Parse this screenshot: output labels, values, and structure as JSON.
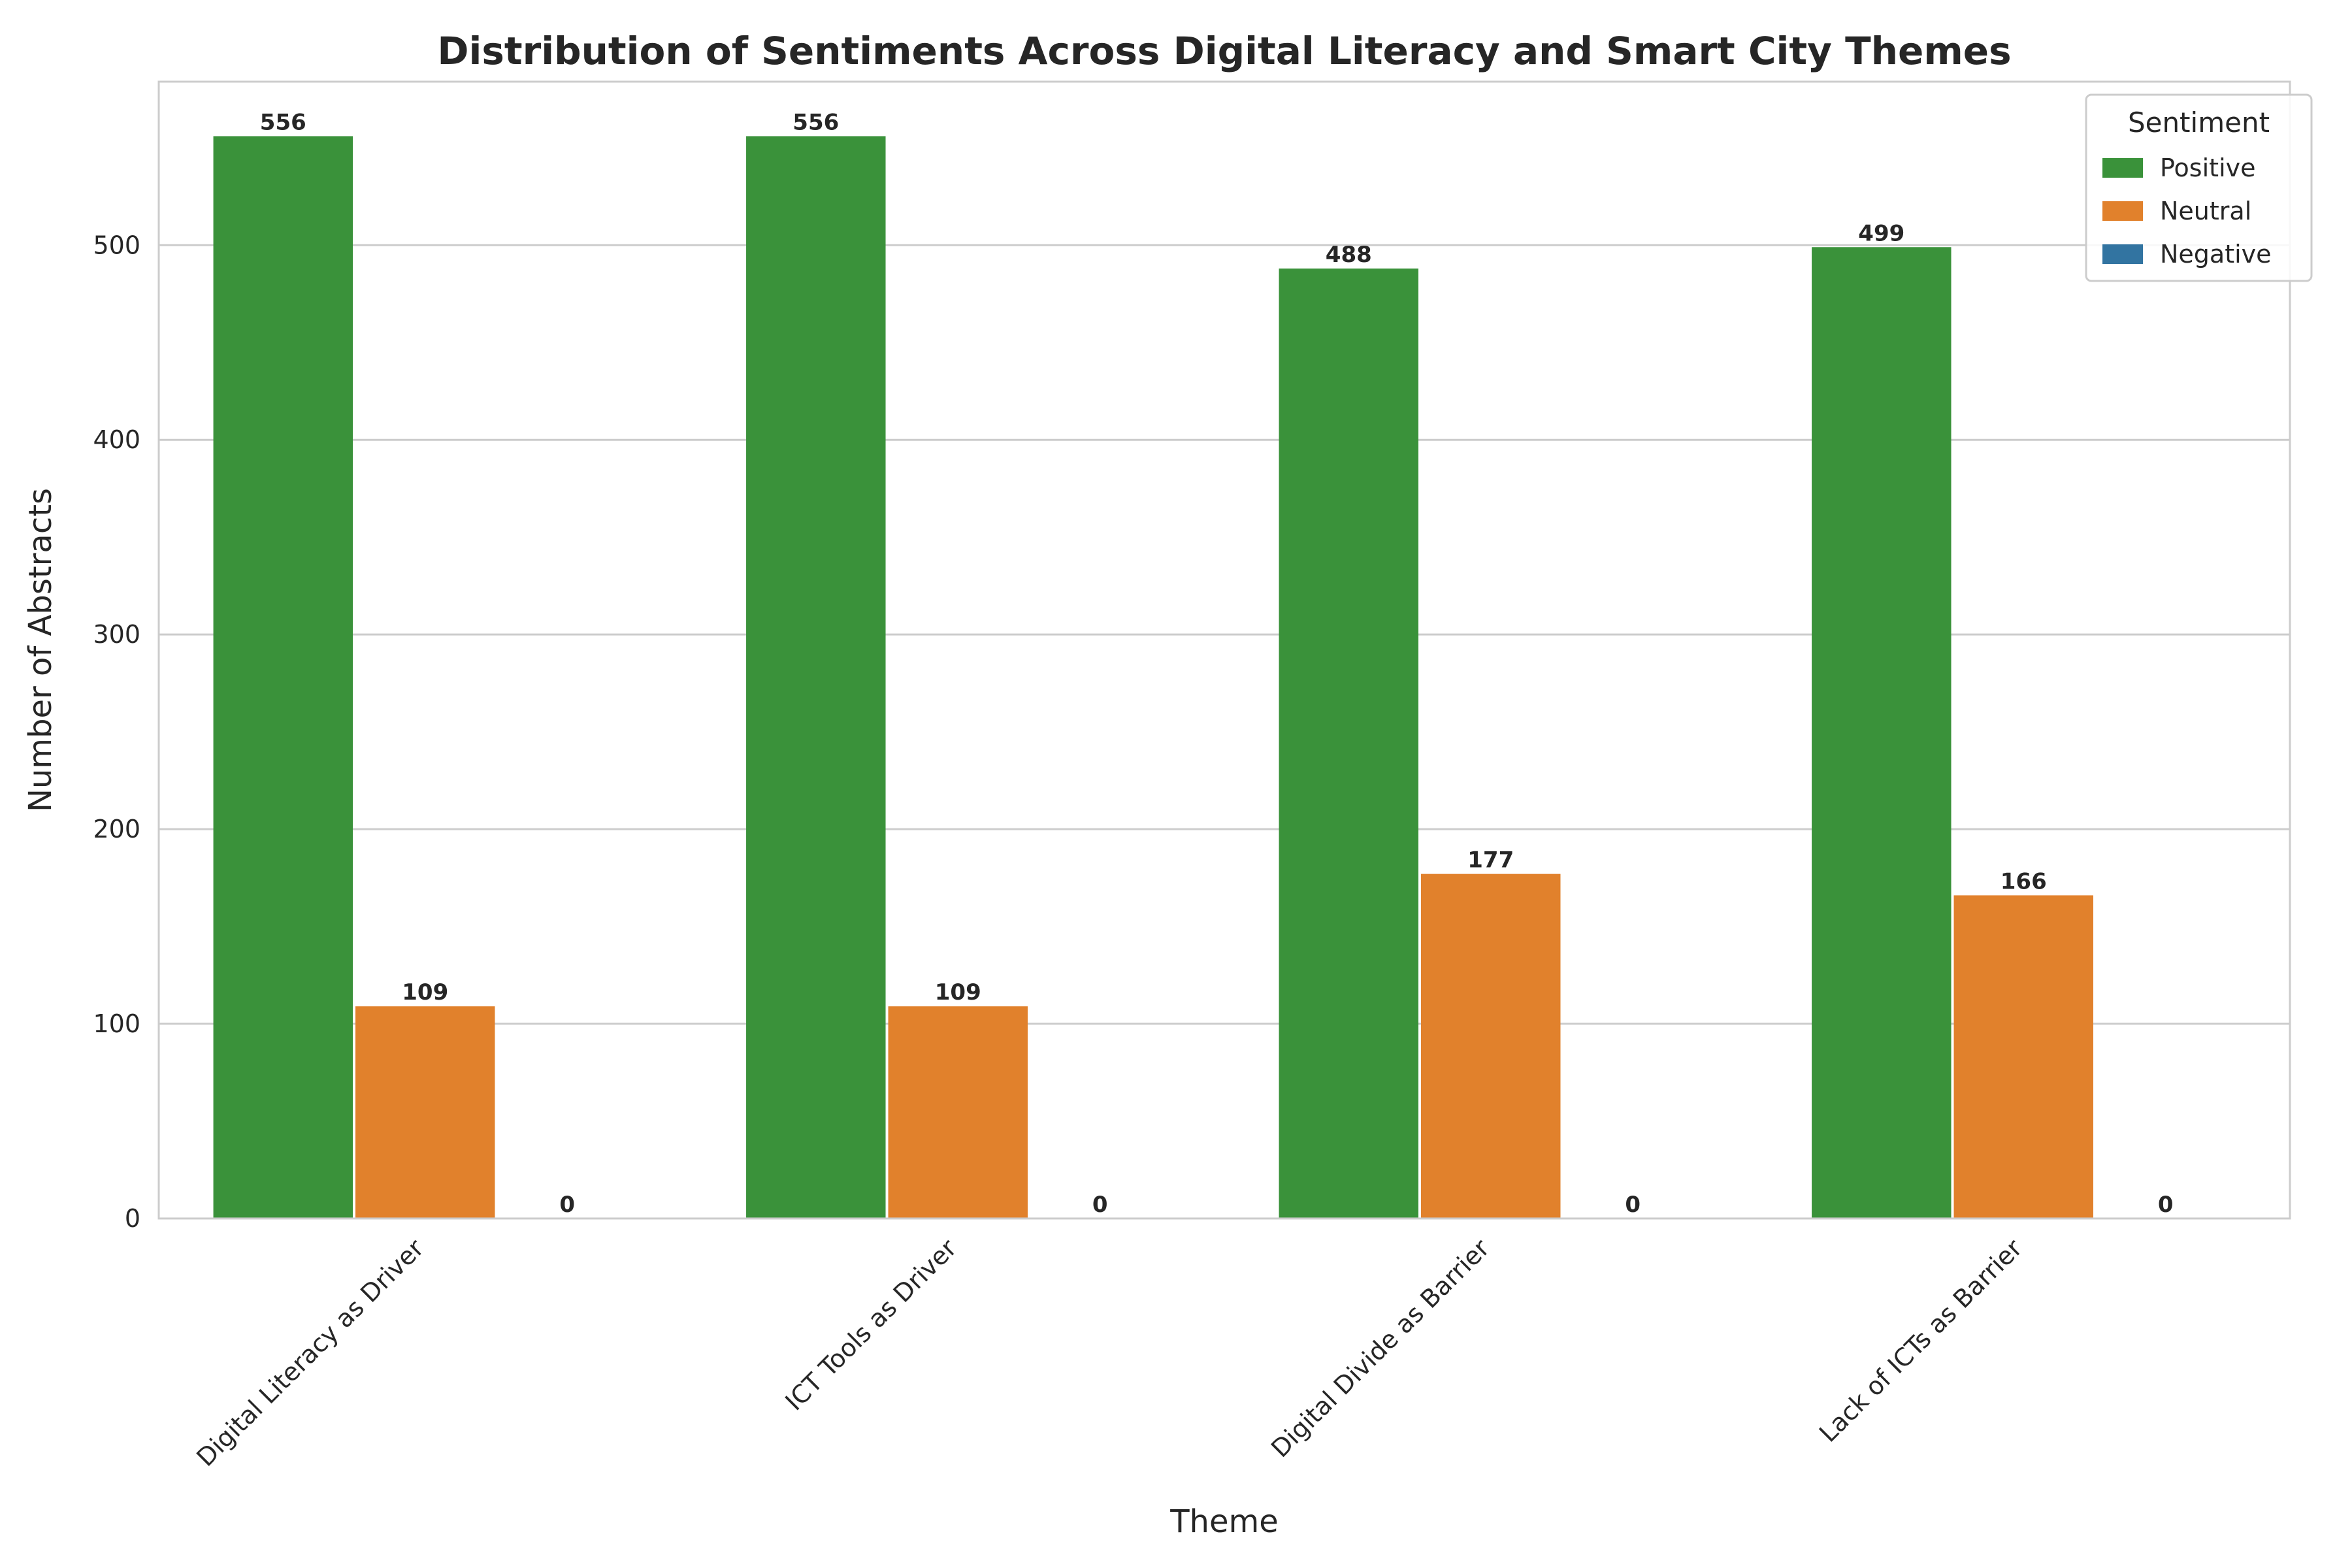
{
  "chart_data": {
    "type": "bar",
    "title": "Distribution of Sentiments Across Digital Literacy and Smart City Themes",
    "xlabel": "Theme",
    "ylabel": "Number of Abstracts",
    "categories": [
      "Digital Literacy as Driver",
      "ICT Tools as Driver",
      "Digital Divide as Barrier",
      "Lack of ICTs as Barrier"
    ],
    "series": [
      {
        "name": "Positive",
        "color": "#3a923a",
        "values": [
          556,
          556,
          488,
          499
        ]
      },
      {
        "name": "Neutral",
        "color": "#e1812c",
        "values": [
          109,
          109,
          177,
          166
        ]
      },
      {
        "name": "Negative",
        "color": "#3274a1",
        "values": [
          0,
          0,
          0,
          0
        ]
      }
    ],
    "ylim": [
      0,
      584
    ],
    "yticks": [
      0,
      100,
      200,
      300,
      400,
      500
    ],
    "grid": "horizontal",
    "legend": {
      "title": "Sentiment",
      "placement": "top-right"
    }
  }
}
